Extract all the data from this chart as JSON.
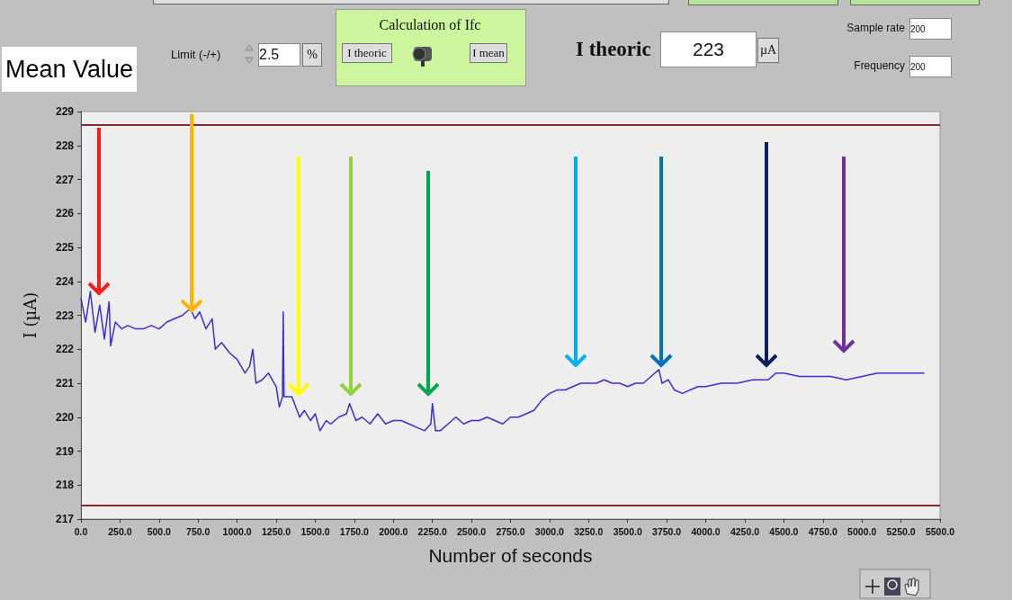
{
  "chart_data": {
    "type": "line",
    "title": "Mean Value",
    "xlabel": "Number of seconds",
    "ylabel": "I (µA)",
    "xlim": [
      0,
      5500
    ],
    "ylim": [
      217,
      229
    ],
    "xticks": [
      {
        "value": 0,
        "label": "0.0"
      },
      {
        "value": 250,
        "label": "250.0"
      },
      {
        "value": 500,
        "label": "500.0"
      },
      {
        "value": 750,
        "label": "750.0"
      },
      {
        "value": 1000,
        "label": "1000.0"
      },
      {
        "value": 1250,
        "label": "1250.0"
      },
      {
        "value": 1500,
        "label": "1500.0"
      },
      {
        "value": 1750,
        "label": "1750.0"
      },
      {
        "value": 2000,
        "label": "2000.0"
      },
      {
        "value": 2250,
        "label": "2250.0"
      },
      {
        "value": 2500,
        "label": "2500.0"
      },
      {
        "value": 2750,
        "label": "2750.0"
      },
      {
        "value": 3000,
        "label": "3000.0"
      },
      {
        "value": 3250,
        "label": "3250.0"
      },
      {
        "value": 3500,
        "label": "3500.0"
      },
      {
        "value": 3750,
        "label": "3750.0"
      },
      {
        "value": 4000,
        "label": "4000.0"
      },
      {
        "value": 4250,
        "label": "4250.0"
      },
      {
        "value": 4500,
        "label": "4500.0"
      },
      {
        "value": 4750,
        "label": "4750.0"
      },
      {
        "value": 5000,
        "label": "5000.0"
      },
      {
        "value": 5250,
        "label": "5250.0"
      },
      {
        "value": 5500,
        "label": "5500.0"
      }
    ],
    "yticks": [
      217,
      218,
      219,
      220,
      221,
      222,
      223,
      224,
      225,
      226,
      227,
      228,
      229
    ],
    "grid": false,
    "marker": "none",
    "line_style": "solid",
    "series": [
      {
        "color": "#3a2fd8",
        "x": [
          0,
          30,
          60,
          90,
          120,
          150,
          180,
          190,
          220,
          260,
          300,
          350,
          400,
          450,
          500,
          550,
          600,
          650,
          700,
          730,
          760,
          800,
          840,
          860,
          900,
          950,
          1000,
          1050,
          1080,
          1100,
          1120,
          1160,
          1200,
          1250,
          1270,
          1290,
          1295,
          1300,
          1350,
          1400,
          1430,
          1470,
          1500,
          1530,
          1570,
          1600,
          1650,
          1700,
          1720,
          1760,
          1800,
          1850,
          1900,
          1950,
          2000,
          2050,
          2100,
          2150,
          2200,
          2240,
          2250,
          2270,
          2300,
          2350,
          2400,
          2450,
          2500,
          2550,
          2600,
          2650,
          2700,
          2750,
          2800,
          2850,
          2900,
          2950,
          3000,
          3050,
          3100,
          3150,
          3200,
          3250,
          3300,
          3350,
          3400,
          3450,
          3500,
          3550,
          3600,
          3650,
          3700,
          3720,
          3760,
          3800,
          3850,
          3900,
          3950,
          4000,
          4100,
          4200,
          4300,
          4400,
          4450,
          4500,
          4600,
          4700,
          4800,
          4900,
          5000,
          5100,
          5200,
          5300,
          5400
        ],
        "values": [
          223.5,
          222.8,
          223.7,
          222.5,
          223.3,
          222.3,
          223.4,
          222.1,
          222.8,
          222.6,
          222.7,
          222.6,
          222.6,
          222.7,
          222.6,
          222.8,
          222.9,
          223.0,
          223.2,
          222.9,
          223.1,
          222.6,
          222.9,
          222.0,
          222.2,
          221.9,
          221.7,
          221.3,
          221.5,
          222.0,
          221.0,
          221.1,
          221.3,
          220.9,
          220.3,
          220.6,
          223.1,
          220.6,
          220.6,
          220.0,
          220.2,
          219.9,
          220.1,
          219.6,
          219.9,
          219.8,
          220.0,
          220.1,
          220.4,
          219.9,
          220.0,
          219.8,
          220.1,
          219.8,
          219.9,
          219.9,
          219.8,
          219.7,
          219.6,
          219.8,
          220.4,
          219.6,
          219.6,
          219.8,
          220.0,
          219.8,
          219.9,
          219.9,
          220.0,
          219.9,
          219.8,
          220.0,
          220.0,
          220.1,
          220.2,
          220.5,
          220.7,
          220.8,
          220.8,
          220.9,
          221.0,
          221.0,
          221.0,
          221.1,
          221.0,
          221.0,
          220.9,
          221.0,
          221.0,
          221.2,
          221.4,
          221.0,
          221.1,
          220.8,
          220.7,
          220.8,
          220.9,
          220.9,
          221.0,
          221.0,
          221.1,
          221.1,
          221.3,
          221.3,
          221.2,
          221.2,
          221.2,
          221.1,
          221.2,
          221.3,
          221.3,
          221.3,
          221.3
        ]
      }
    ],
    "ref_lines": [
      {
        "axis": "y",
        "value": 228.6,
        "color": "#8b2a2a"
      },
      {
        "axis": "y",
        "value": 217.4,
        "color": "#8b2a2a"
      }
    ],
    "annotations": [
      "Limit (-/+)",
      "2.5",
      "%",
      "Calculation of Ifc",
      "I theoric",
      "I mean",
      "I theoric",
      "223",
      "µA",
      "Sample rate",
      "200",
      "Frequency",
      "200"
    ]
  }
}
